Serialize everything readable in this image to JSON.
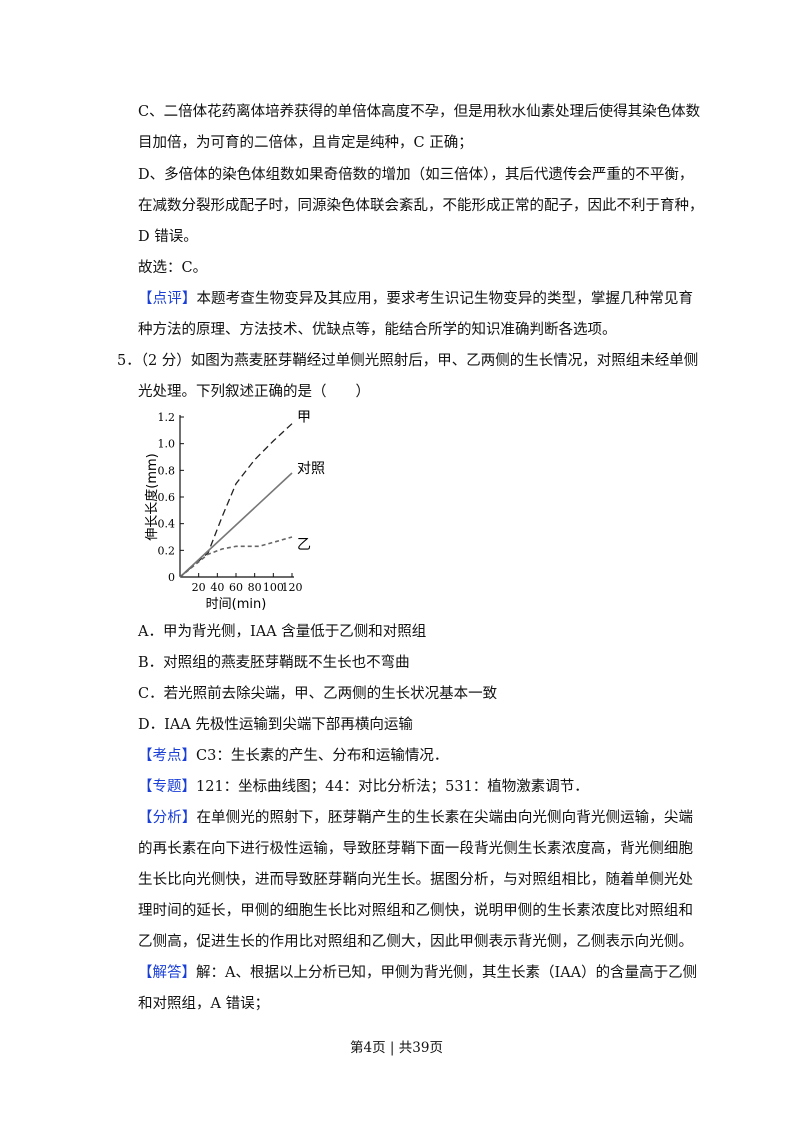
{
  "colors": {
    "tag": "#1a3fd6"
  },
  "prev": {
    "c_lines": [
      "C、二倍体花药离体培养获得的单倍体高度不孕，但是用秋水仙素处理后使得其染色体数",
      "目加倍，为可育的二倍体，且肯定是纯种，C 正确；"
    ],
    "d_lines": [
      "D、多倍体的染色体组数如果奇倍数的增加（如三倍体），其后代遗传会严重的不平衡，",
      "在减数分裂形成配子时，同源染色体联会紊乱，不能形成正常的配子，因此不利于育种，",
      "D 错误。"
    ],
    "answer": "故选：C。",
    "review_tag": "【点评】",
    "review_lines": [
      "本题考查生物变异及其应用，要求考生识记生物变异的类型，掌握几种常见育",
      "种方法的原理、方法技术、优缺点等，能结合所学的知识准确判断各选项。"
    ]
  },
  "q5": {
    "stem_lines": [
      "5．（2 分）如图为燕麦胚芽鞘经过单侧光照射后，甲、乙两侧的生长情况，对照组未经单侧",
      "光处理。下列叙述正确的是（　　）"
    ],
    "options": [
      "A．甲为背光侧，IAA 含量低于乙侧和对照组",
      "B．对照组的燕麦胚芽鞘既不生长也不弯曲",
      "C．若光照前去除尖端，甲、乙两侧的生长状况基本一致",
      "D．IAA 先极性运输到尖端下部再横向运输"
    ],
    "kaodian_tag": "【考点】",
    "kaodian": "C3：生长素的产生、分布和运输情况．",
    "zhuanti_tag": "【专题】",
    "zhuanti": "121：坐标曲线图；44：对比分析法；531：植物激素调节．",
    "fenxi_tag": "【分析】",
    "fenxi_lines": [
      "在单侧光的照射下，胚芽鞘产生的生长素在尖端由向光侧向背光侧运输，尖端",
      "的再长素在向下进行极性运输，导致胚芽鞘下面一段背光侧生长素浓度高，背光侧细胞",
      "生长比向光侧快，进而导致胚芽鞘向光生长。据图分析，与对照组相比，随着单侧光处",
      "理时间的延长，甲侧的细胞生长比对照组和乙侧快，说明甲侧的生长素浓度比对照组和",
      "乙侧高，促进生长的作用比对照组和乙侧大，因此甲侧表示背光侧，乙侧表示向光侧。"
    ],
    "jieda_tag": "【解答】",
    "jieda_lines": [
      "解：A、根据以上分析已知，甲侧为背光侧，其生长素（IAA）的含量高于乙侧",
      "和对照组，A 错误；"
    ]
  },
  "chart_data": {
    "type": "line",
    "xlabel": "时间(min)",
    "ylabel": "伸长长度(mm)",
    "xticks": [
      "20",
      "40",
      "60",
      "80",
      "100",
      "120"
    ],
    "yticks": [
      "0",
      "0.2",
      "0.4",
      "0.6",
      "0.8",
      "1.0",
      "1.2"
    ],
    "xlim": [
      0,
      120
    ],
    "ylim": [
      0,
      1.2
    ],
    "series": [
      {
        "name": "甲",
        "style": "dashed",
        "x": [
          0,
          30,
          45,
          60,
          80,
          100,
          120
        ],
        "y": [
          0,
          0.18,
          0.45,
          0.7,
          0.88,
          1.02,
          1.15
        ]
      },
      {
        "name": "对照",
        "style": "solid",
        "x": [
          0,
          120
        ],
        "y": [
          0,
          0.78
        ]
      },
      {
        "name": "乙",
        "style": "dotted",
        "x": [
          0,
          30,
          45,
          60,
          85,
          120
        ],
        "y": [
          0,
          0.17,
          0.21,
          0.23,
          0.23,
          0.3
        ]
      }
    ]
  },
  "footer": "第4页 | 共39页"
}
